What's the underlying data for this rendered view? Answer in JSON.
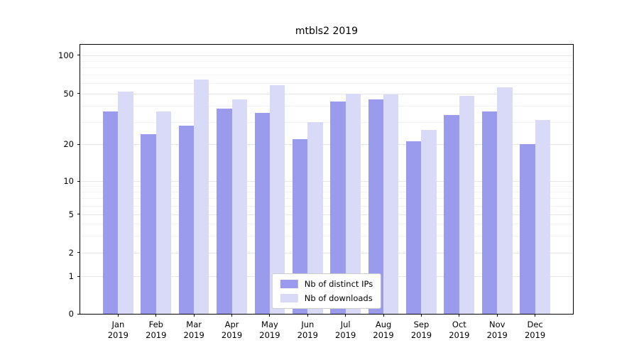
{
  "chart_data": {
    "type": "bar",
    "title": "mtbls2 2019",
    "categories": [
      "Jan 2019",
      "Feb 2019",
      "Mar 2019",
      "Apr 2019",
      "May 2019",
      "Jun 2019",
      "Jul 2019",
      "Aug 2019",
      "Sep 2019",
      "Oct 2019",
      "Nov 2019",
      "Dec 2019"
    ],
    "series": [
      {
        "name": "Nb of distinct IPs",
        "color": "#9b9bee",
        "values": [
          36,
          24,
          28,
          38,
          35,
          22,
          43,
          45,
          21,
          34,
          36,
          20
        ]
      },
      {
        "name": "Nb of downloads",
        "color": "#d9d9f8",
        "values": [
          52,
          36,
          64,
          45,
          58,
          30,
          50,
          49,
          26,
          48,
          56,
          31
        ]
      }
    ],
    "yticks": [
      100,
      50,
      20,
      10,
      5,
      2,
      1,
      0
    ],
    "yscale": "symlog",
    "ylim": [
      0,
      120
    ],
    "xlabel": "",
    "ylabel": "",
    "grid": true,
    "legend_position": "lower center"
  }
}
